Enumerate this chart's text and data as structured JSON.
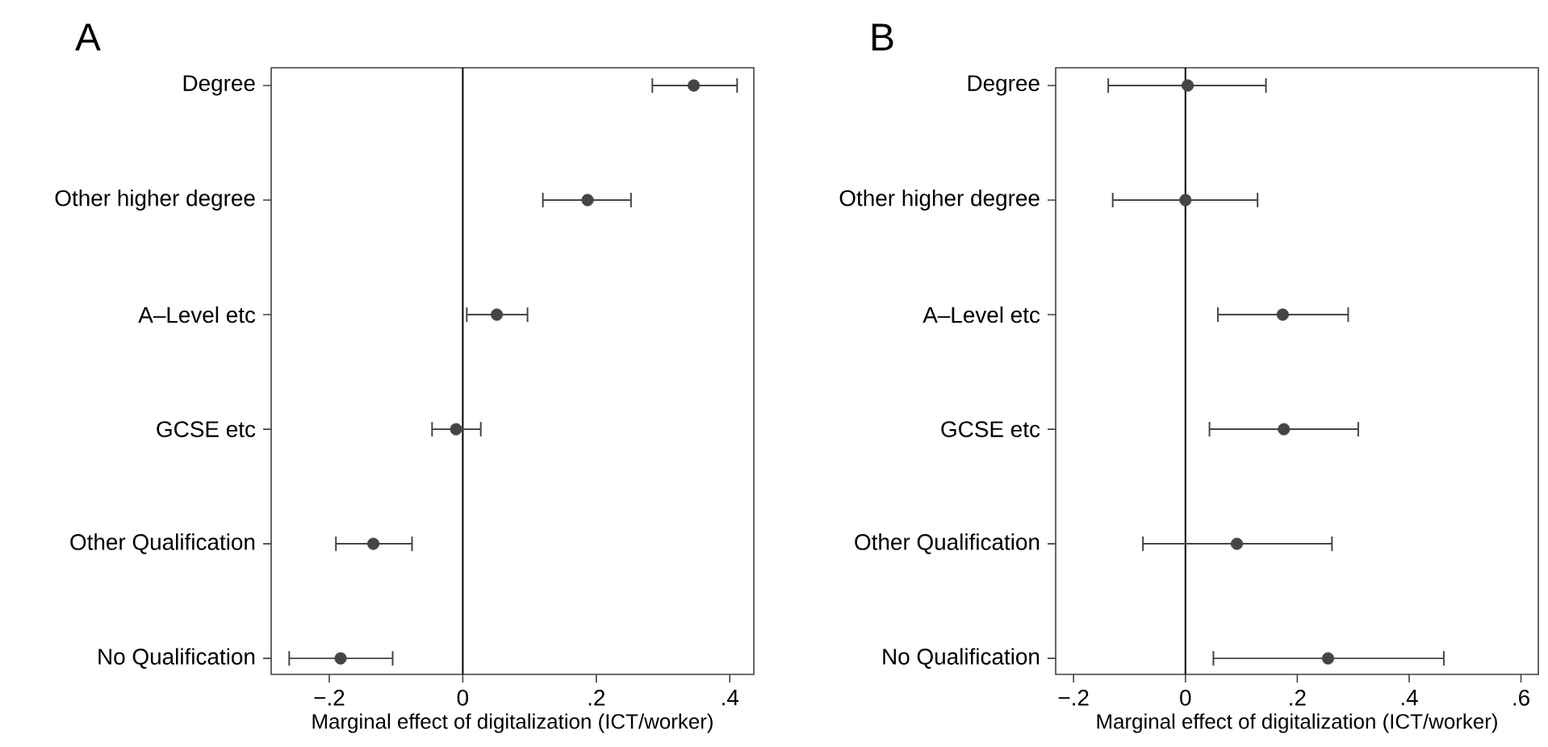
{
  "chart_data": [
    {
      "type": "scatter",
      "orientation": "horizontal",
      "title": "A",
      "xlabel": "Marginal effect of digitalization (ICT/worker)",
      "color": "#454545",
      "categories": [
        "Degree",
        "Other higher degree",
        "A–Level etc",
        "GCSE etc",
        "Other Qualification",
        "No Qualification"
      ],
      "values": [
        0.346,
        0.187,
        0.051,
        -0.01,
        -0.134,
        -0.183
      ],
      "errors": [
        [
          0.284,
          0.411
        ],
        [
          0.12,
          0.252
        ],
        [
          0.006,
          0.097
        ],
        [
          -0.046,
          0.027
        ],
        [
          -0.19,
          -0.076
        ],
        [
          -0.26,
          -0.105
        ]
      ],
      "xlim": [
        -0.287,
        0.436
      ],
      "xticks": [
        {
          "value": -0.2,
          "label": "−.2"
        },
        0,
        {
          "value": 0.2,
          "label": ".2"
        },
        {
          "value": 0.4,
          "label": ".4"
        }
      ],
      "ref_lines": [
        {
          "axis": "x",
          "value": 0
        }
      ]
    },
    {
      "type": "scatter",
      "orientation": "horizontal",
      "title": "B",
      "xlabel": "Marginal effect of digitalization (ICT/worker)",
      "color": "#454545",
      "categories": [
        "Degree",
        "Other higher degree",
        "A–Level etc",
        "GCSE etc",
        "Other Qualification",
        "No Qualification"
      ],
      "values": [
        0.004,
        0.0,
        0.174,
        0.176,
        0.092,
        0.255
      ],
      "errors": [
        [
          -0.138,
          0.144
        ],
        [
          -0.13,
          0.129
        ],
        [
          0.058,
          0.291
        ],
        [
          0.043,
          0.309
        ],
        [
          -0.076,
          0.262
        ],
        [
          0.05,
          0.462
        ]
      ],
      "xlim": [
        -0.232,
        0.631
      ],
      "xticks": [
        {
          "value": -0.2,
          "label": "−.2"
        },
        0,
        {
          "value": 0.2,
          "label": ".2"
        },
        {
          "value": 0.4,
          "label": ".4"
        },
        {
          "value": 0.6,
          "label": ".6"
        }
      ],
      "ref_lines": [
        {
          "axis": "x",
          "value": 0
        }
      ]
    }
  ]
}
